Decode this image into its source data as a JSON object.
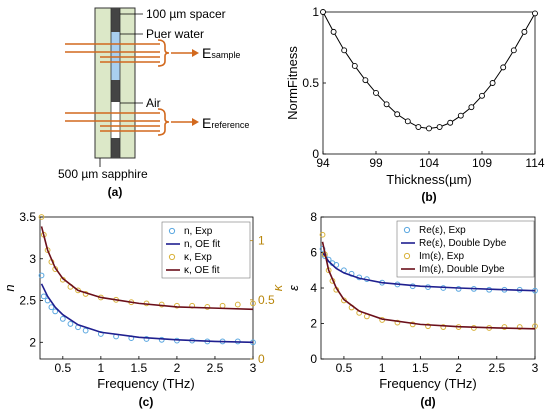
{
  "panel_labels": [
    "(a)",
    "(b)",
    "(c)",
    "(d)"
  ],
  "schematic": {
    "spacer_label": "100 µm spacer",
    "water_label": "Puer water",
    "air_label": "Air",
    "sapphire_label": "500 µm sapphire",
    "e_sample_main": "E",
    "e_sample_sub": "sample",
    "e_reference_main": "E",
    "e_reference_sub": "reference",
    "beam_color": "#d2691e",
    "cell_color": "#dce8c8"
  },
  "colors": {
    "blue_markers": "#5aa7e0",
    "blue_fit": "#1f1f8f",
    "orange_markers": "#d9b23a",
    "dark_red_fit": "#6b0f1a",
    "right_axis": "#b8860b",
    "black": "#000000"
  },
  "chart_data": [
    {
      "id": "b",
      "type": "line",
      "marker": "circle",
      "xlabel": "Thickness(µm)",
      "ylabel": "NormFitness",
      "xlim": [
        94,
        114
      ],
      "ylim": [
        0,
        1
      ],
      "xticks": [
        "94",
        "99",
        "104",
        "109",
        "114"
      ],
      "yticks": [
        "0",
        "0.5",
        "1"
      ],
      "series": [
        {
          "x": [
            94,
            95,
            96,
            97,
            98,
            99,
            100,
            101,
            102,
            103,
            104,
            105,
            106,
            107,
            108,
            109,
            110,
            111,
            112,
            113,
            114
          ],
          "values": [
            1.0,
            0.86,
            0.73,
            0.62,
            0.52,
            0.43,
            0.35,
            0.28,
            0.23,
            0.19,
            0.18,
            0.19,
            0.22,
            0.27,
            0.33,
            0.41,
            0.5,
            0.61,
            0.73,
            0.86,
            0.99
          ]
        }
      ]
    },
    {
      "id": "c",
      "type": "line",
      "xlabel": "Frequency (THz)",
      "ylabel": "n",
      "y2label": "κ",
      "xlim": [
        0.2,
        3
      ],
      "ylim": [
        1.8,
        3.5
      ],
      "y2lim": [
        0,
        1.2
      ],
      "xticks": [
        "0.5",
        "1",
        "1.5",
        "2",
        "2.5",
        "3"
      ],
      "yticks": [
        "2",
        "2.5",
        "3",
        "3.5"
      ],
      "y2ticks": [
        "0",
        "0.5",
        "1"
      ],
      "legend_location": "top-right",
      "series": [
        {
          "name": "n, Exp",
          "axis": "left",
          "style": "markers",
          "x": [
            0.22,
            0.25,
            0.3,
            0.35,
            0.4,
            0.5,
            0.6,
            0.7,
            0.8,
            1.0,
            1.2,
            1.4,
            1.6,
            1.8,
            2.0,
            2.2,
            2.4,
            2.6,
            2.8,
            3.0
          ],
          "values": [
            2.8,
            2.55,
            2.5,
            2.42,
            2.37,
            2.28,
            2.22,
            2.18,
            2.14,
            2.1,
            2.07,
            2.05,
            2.04,
            2.03,
            2.02,
            2.02,
            2.01,
            2.01,
            2.01,
            2.0
          ]
        },
        {
          "name": "n, OE fit",
          "axis": "left",
          "style": "line",
          "x": [
            0.22,
            0.3,
            0.4,
            0.5,
            0.7,
            1.0,
            1.5,
            2.0,
            2.5,
            3.0
          ],
          "values": [
            2.7,
            2.55,
            2.42,
            2.33,
            2.21,
            2.12,
            2.06,
            2.03,
            2.01,
            2.0
          ]
        },
        {
          "name": "κ, Exp",
          "axis": "right",
          "style": "markers",
          "x": [
            0.22,
            0.25,
            0.3,
            0.35,
            0.4,
            0.5,
            0.6,
            0.7,
            0.8,
            1.0,
            1.2,
            1.4,
            1.6,
            1.8,
            2.0,
            2.2,
            2.4,
            2.6,
            2.8,
            3.0
          ],
          "values": [
            1.2,
            1.05,
            0.92,
            0.82,
            0.76,
            0.67,
            0.61,
            0.58,
            0.55,
            0.52,
            0.5,
            0.48,
            0.47,
            0.46,
            0.45,
            0.45,
            0.44,
            0.45,
            0.46,
            0.47
          ]
        },
        {
          "name": "κ, OE fit",
          "axis": "right",
          "style": "line",
          "x": [
            0.22,
            0.3,
            0.4,
            0.5,
            0.7,
            1.0,
            1.5,
            2.0,
            2.5,
            3.0
          ],
          "values": [
            1.12,
            0.92,
            0.77,
            0.68,
            0.58,
            0.52,
            0.47,
            0.44,
            0.43,
            0.42
          ]
        }
      ]
    },
    {
      "id": "d",
      "type": "line",
      "xlabel": "Frequency (THz)",
      "ylabel": "ε",
      "xlim": [
        0.2,
        3
      ],
      "ylim": [
        0,
        8
      ],
      "xticks": [
        "0.5",
        "1",
        "1.5",
        "2",
        "2.5",
        "3"
      ],
      "yticks": [
        "0",
        "2",
        "4",
        "6",
        "8"
      ],
      "legend_location": "top-right",
      "series": [
        {
          "name": "Re(ε), Exp",
          "style": "markers",
          "x": [
            0.22,
            0.25,
            0.3,
            0.35,
            0.4,
            0.5,
            0.6,
            0.7,
            0.8,
            1.0,
            1.2,
            1.4,
            1.6,
            1.8,
            2.0,
            2.2,
            2.4,
            2.6,
            2.8,
            3.0
          ],
          "values": [
            6.2,
            5.8,
            5.6,
            5.4,
            5.3,
            5.0,
            4.8,
            4.6,
            4.5,
            4.3,
            4.2,
            4.1,
            4.05,
            4.0,
            3.95,
            3.95,
            3.9,
            3.9,
            3.9,
            3.85
          ]
        },
        {
          "name": "Re(ε), Double Dybe",
          "style": "line",
          "x": [
            0.22,
            0.3,
            0.4,
            0.5,
            0.7,
            1.0,
            1.5,
            2.0,
            2.5,
            3.0
          ],
          "values": [
            6.0,
            5.5,
            5.1,
            4.85,
            4.55,
            4.3,
            4.1,
            4.0,
            3.92,
            3.85
          ]
        },
        {
          "name": "Im(ε), Exp",
          "style": "markers",
          "x": [
            0.22,
            0.25,
            0.3,
            0.35,
            0.4,
            0.5,
            0.6,
            0.7,
            0.8,
            1.0,
            1.2,
            1.4,
            1.6,
            1.8,
            2.0,
            2.2,
            2.4,
            2.6,
            2.8,
            3.0
          ],
          "values": [
            7.0,
            5.9,
            5.0,
            4.4,
            3.9,
            3.3,
            2.9,
            2.6,
            2.4,
            2.2,
            2.05,
            1.95,
            1.85,
            1.8,
            1.8,
            1.75,
            1.75,
            1.8,
            1.8,
            1.85
          ]
        },
        {
          "name": "Im(ε), Double Dybe",
          "style": "line",
          "x": [
            0.22,
            0.3,
            0.4,
            0.5,
            0.7,
            1.0,
            1.5,
            2.0,
            2.5,
            3.0
          ],
          "values": [
            6.6,
            5.0,
            4.0,
            3.35,
            2.7,
            2.25,
            1.95,
            1.82,
            1.75,
            1.7
          ]
        }
      ]
    }
  ]
}
